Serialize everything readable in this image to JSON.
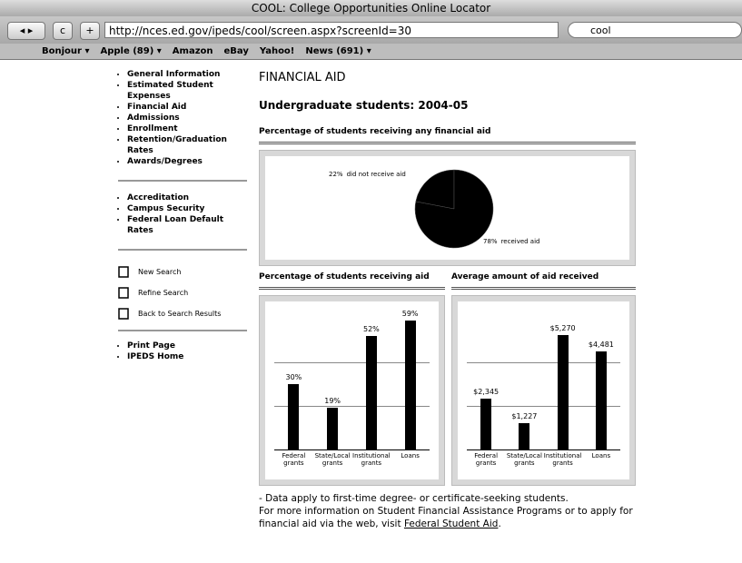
{
  "browser": {
    "title": "COOL: College Opportunities Online Locator",
    "url": "http://nces.ed.gov/ipeds/cool/screen.aspx?screenId=30",
    "search": "cool",
    "bookmarks": [
      "Bonjour ▾",
      "Apple (89) ▾",
      "Amazon",
      "eBay",
      "Yahoo!",
      "News (691) ▾"
    ]
  },
  "sidebar": {
    "menu": [
      "General Information",
      "Estimated Student Expenses",
      "Financial Aid",
      "Admissions",
      "Enrollment",
      "Retention/Graduation Rates",
      "Awards/Degrees"
    ],
    "menu2": [
      "Accreditation",
      "Campus Security",
      "Federal Loan Default Rates"
    ],
    "tools": [
      "New Search",
      "Refine Search",
      "Back to Search Results"
    ],
    "menu3": [
      "Print Page",
      "IPEDS Home"
    ]
  },
  "content": {
    "heading": "FINANCIAL AID",
    "subheading": "Undergraduate students: 2004-05",
    "note": "- Data apply to first-time degree- or certificate-seeking students.",
    "more": "For more information on Student Financial Assistance Programs or to apply for financial aid via the web, visit ",
    "link": "Federal Student Aid",
    "end": "."
  },
  "chart_data": [
    {
      "type": "pie",
      "title": "Percentage of students receiving any financial aid",
      "categories": [
        "did not receive aid",
        "received aid"
      ],
      "values": [
        22,
        78
      ],
      "value_labels": [
        "22%",
        "78%"
      ],
      "colors": [
        "#000000",
        "#000000"
      ]
    },
    {
      "type": "bar",
      "title": "Percentage of students receiving aid",
      "categories": [
        "Federal grants",
        "State/Local grants",
        "Institutional grants",
        "Loans"
      ],
      "values": [
        30,
        19,
        52,
        59
      ],
      "value_labels": [
        "30%",
        "19%",
        "52%",
        "59%"
      ],
      "color": "#000000",
      "ylim": [
        0,
        65
      ],
      "yticks": [
        20,
        40
      ],
      "grid": true
    },
    {
      "type": "bar",
      "title": "Average amount of aid received",
      "categories": [
        "Federal grants",
        "State/Local grants",
        "Institutional grants",
        "Loans"
      ],
      "values": [
        2345,
        1227,
        5270,
        4481
      ],
      "value_labels": [
        "$2,345",
        "$1,227",
        "$5,270",
        "$4,481"
      ],
      "color": "#000000",
      "ylim": [
        0,
        6500
      ],
      "yticks": [
        2000,
        4000
      ],
      "grid": true
    }
  ]
}
